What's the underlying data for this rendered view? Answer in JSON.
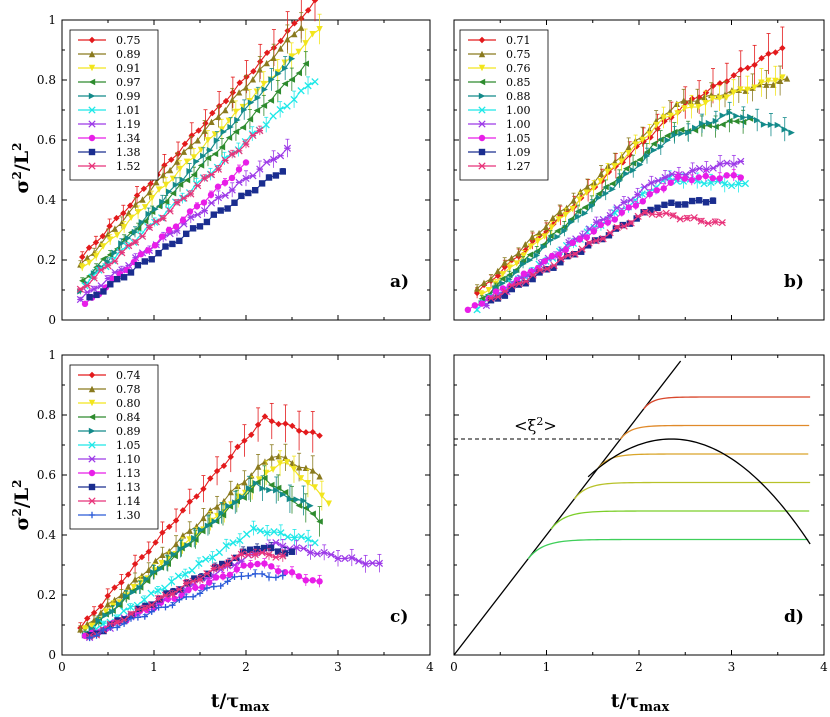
{
  "figure": {
    "ylabel": "σ²/L²",
    "xlabel": "t/τmax",
    "xlabel_main": "t/τ",
    "xlabel_sub": "max",
    "ylabel_main": "σ",
    "ylabel_sup": "2",
    "ylabel_rest": "/L",
    "ylabel_sup2": "2"
  },
  "chart_data": [
    {
      "type": "line",
      "panel": "a)",
      "xlim": [
        0,
        4
      ],
      "ylim": [
        0,
        1
      ],
      "xticks": [
        0,
        1,
        2,
        3,
        4
      ],
      "yticks": [
        0,
        0.2,
        0.4,
        0.6,
        0.8,
        1
      ],
      "ytick_labels": [
        "0",
        "0.2",
        "0.4",
        "0.6",
        "0.8",
        "1"
      ],
      "xtick_labels": [],
      "series": [
        {
          "name": "0.75",
          "color": "#e31a1c",
          "marker": "diamond",
          "x": [
            0.22,
            2.75
          ],
          "y": [
            0.21,
            1.06
          ],
          "err": 0.07
        },
        {
          "name": "0.89",
          "color": "#8a7a1e",
          "marker": "triangle",
          "x": [
            0.2,
            2.6
          ],
          "y": [
            0.18,
            0.98
          ],
          "err": 0.05
        },
        {
          "name": "0.91",
          "color": "#f2e51d",
          "marker": "triangle-down",
          "x": [
            0.22,
            2.8
          ],
          "y": [
            0.17,
            0.97
          ],
          "err": 0.05
        },
        {
          "name": "0.97",
          "color": "#2e8b2e",
          "marker": "triangle-left",
          "x": [
            0.22,
            2.65
          ],
          "y": [
            0.13,
            0.85
          ],
          "err": 0.04
        },
        {
          "name": "0.99",
          "color": "#138a8a",
          "marker": "triangle-right",
          "x": [
            0.2,
            2.5
          ],
          "y": [
            0.1,
            0.87
          ],
          "err": 0.04
        },
        {
          "name": "1.01",
          "color": "#1ee8e8",
          "marker": "x",
          "x": [
            0.25,
            2.75
          ],
          "y": [
            0.12,
            0.8
          ],
          "err": 0.03
        },
        {
          "name": "1.19",
          "color": "#9d3ae8",
          "marker": "asterisk",
          "x": [
            0.2,
            2.45
          ],
          "y": [
            0.07,
            0.57
          ],
          "err": 0.03
        },
        {
          "name": "1.34",
          "color": "#e81ee8",
          "marker": "circle",
          "x": [
            0.25,
            2.0
          ],
          "y": [
            0.05,
            0.52
          ],
          "err": 0.015
        },
        {
          "name": "1.38",
          "color": "#1a2d8f",
          "marker": "square",
          "x": [
            0.3,
            2.4
          ],
          "y": [
            0.07,
            0.5
          ],
          "err": 0.01
        },
        {
          "name": "1.52",
          "color": "#e8337a",
          "marker": "asterisk",
          "x": [
            0.2,
            2.15
          ],
          "y": [
            0.1,
            0.63
          ],
          "err": 0.015
        }
      ]
    },
    {
      "type": "line",
      "panel": "b)",
      "xlim": [
        0,
        4
      ],
      "ylim": [
        0,
        1
      ],
      "xticks": [
        0,
        1,
        2,
        3,
        4
      ],
      "yticks": [
        0,
        0.2,
        0.4,
        0.6,
        0.8,
        1
      ],
      "ytick_labels": [],
      "xtick_labels": [],
      "series": [
        {
          "name": "0.71",
          "color": "#e31a1c",
          "marker": "diamond",
          "x": [
            0.25,
            2.5,
            3.55
          ],
          "y": [
            0.09,
            0.72,
            0.91
          ],
          "err": 0.07
        },
        {
          "name": "0.75",
          "color": "#8a7a1e",
          "marker": "triangle",
          "x": [
            0.25,
            2.4,
            3.6
          ],
          "y": [
            0.1,
            0.72,
            0.8
          ],
          "err": 0.05
        },
        {
          "name": "0.76",
          "color": "#f2e51d",
          "marker": "triangle-down",
          "x": [
            0.3,
            2.3,
            3.55
          ],
          "y": [
            0.08,
            0.68,
            0.81
          ],
          "err": 0.05
        },
        {
          "name": "0.85",
          "color": "#2e8b2e",
          "marker": "triangle-left",
          "x": [
            0.3,
            2.3,
            3.2
          ],
          "y": [
            0.07,
            0.62,
            0.67
          ],
          "err": 0.04
        },
        {
          "name": "0.88",
          "color": "#138a8a",
          "marker": "triangle-right",
          "x": [
            0.3,
            2.3,
            3.0,
            3.65
          ],
          "y": [
            0.06,
            0.6,
            0.69,
            0.63
          ],
          "err": 0.04
        },
        {
          "name": "1.00",
          "color": "#1ee8e8",
          "marker": "x",
          "x": [
            0.25,
            2.3,
            3.15
          ],
          "y": [
            0.04,
            0.47,
            0.45
          ],
          "err": 0.03
        },
        {
          "name": "1.00",
          "color": "#9d3ae8",
          "marker": "asterisk",
          "x": [
            0.35,
            2.2,
            3.1
          ],
          "y": [
            0.05,
            0.47,
            0.53
          ],
          "err": 0.03
        },
        {
          "name": "1.05",
          "color": "#e81ee8",
          "marker": "circle",
          "x": [
            0.15,
            2.4,
            3.1
          ],
          "y": [
            0.03,
            0.47,
            0.48
          ],
          "err": 0.02
        },
        {
          "name": "1.09",
          "color": "#1a2d8f",
          "marker": "square",
          "x": [
            0.4,
            2.2,
            2.8
          ],
          "y": [
            0.06,
            0.38,
            0.4
          ],
          "err": 0.01
        },
        {
          "name": "1.27",
          "color": "#e8337a",
          "marker": "asterisk",
          "x": [
            0.4,
            2.1,
            2.9
          ],
          "y": [
            0.07,
            0.36,
            0.32
          ],
          "err": 0.01
        }
      ]
    },
    {
      "type": "line",
      "panel": "c)",
      "xlim": [
        0,
        4
      ],
      "ylim": [
        0,
        1
      ],
      "xticks": [
        0,
        1,
        2,
        3,
        4
      ],
      "yticks": [
        0,
        0.2,
        0.4,
        0.6,
        0.8,
        1
      ],
      "ytick_labels": [
        "0",
        "0.2",
        "0.4",
        "0.6",
        "0.8",
        "1"
      ],
      "xtick_labels": [
        "0",
        "1",
        "2",
        "3",
        "4"
      ],
      "series": [
        {
          "name": "0.74",
          "color": "#e31a1c",
          "marker": "diamond",
          "x": [
            0.2,
            2.2,
            2.8
          ],
          "y": [
            0.09,
            0.79,
            0.73
          ],
          "err": 0.07
        },
        {
          "name": "0.78",
          "color": "#8a7a1e",
          "marker": "triangle",
          "x": [
            0.2,
            2.3,
            2.8
          ],
          "y": [
            0.08,
            0.67,
            0.6
          ],
          "err": 0.05
        },
        {
          "name": "0.80",
          "color": "#f2e51d",
          "marker": "triangle-down",
          "x": [
            0.25,
            2.4,
            2.9
          ],
          "y": [
            0.08,
            0.65,
            0.51
          ],
          "err": 0.05
        },
        {
          "name": "0.84",
          "color": "#2e8b2e",
          "marker": "triangle-left",
          "x": [
            0.25,
            2.2,
            2.8
          ],
          "y": [
            0.07,
            0.59,
            0.45
          ],
          "err": 0.05
        },
        {
          "name": "0.89",
          "color": "#138a8a",
          "marker": "triangle-right",
          "x": [
            0.25,
            2.1,
            2.7
          ],
          "y": [
            0.07,
            0.57,
            0.5
          ],
          "err": 0.05
        },
        {
          "name": "1.05",
          "color": "#1ee8e8",
          "marker": "x",
          "x": [
            0.3,
            2.1,
            2.75
          ],
          "y": [
            0.07,
            0.42,
            0.38
          ],
          "err": 0.03
        },
        {
          "name": "1.10",
          "color": "#9d3ae8",
          "marker": "asterisk",
          "x": [
            0.3,
            2.3,
            3.45
          ],
          "y": [
            0.06,
            0.37,
            0.3
          ],
          "err": 0.03
        },
        {
          "name": "1.13",
          "color": "#e81ee8",
          "marker": "circle",
          "x": [
            0.25,
            2.1,
            2.8
          ],
          "y": [
            0.06,
            0.31,
            0.24
          ],
          "err": 0.02
        },
        {
          "name": "1.13",
          "color": "#1a2d8f",
          "marker": "square",
          "x": [
            0.3,
            2.1,
            2.5
          ],
          "y": [
            0.06,
            0.36,
            0.34
          ],
          "err": 0.02
        },
        {
          "name": "1.14",
          "color": "#e8337a",
          "marker": "asterisk",
          "x": [
            0.3,
            2.0,
            2.4
          ],
          "y": [
            0.06,
            0.34,
            0.33
          ],
          "err": 0.02
        },
        {
          "name": "1.30",
          "color": "#2a5ad8",
          "marker": "plus",
          "x": [
            0.3,
            2.0,
            2.4
          ],
          "y": [
            0.06,
            0.27,
            0.26
          ],
          "err": 0.015
        }
      ]
    },
    {
      "type": "line",
      "panel": "d)",
      "xlim": [
        0,
        4
      ],
      "ylim": [
        0,
        1
      ],
      "xticks": [
        0,
        1,
        2,
        3,
        4
      ],
      "yticks": [
        0,
        0.2,
        0.4,
        0.6,
        0.8,
        1
      ],
      "ytick_labels": [],
      "xtick_labels": [
        "0",
        "1",
        "2",
        "3",
        "4"
      ],
      "annotation": "<ξ²>",
      "annotation_main": "<ξ",
      "annotation_sup": "2",
      "annotation_end": ">",
      "reference_level": 0.72,
      "slope": 0.4,
      "saturation_curves": [
        {
          "saturation": 0.86,
          "color": "#d9472b",
          "x_start": 2.05
        },
        {
          "saturation": 0.765,
          "color": "#e08a2a",
          "x_start": 1.8
        },
        {
          "saturation": 0.67,
          "color": "#d9a52a",
          "x_start": 1.55
        },
        {
          "saturation": 0.575,
          "color": "#b8c22a",
          "x_start": 1.3
        },
        {
          "saturation": 0.48,
          "color": "#7ccf2a",
          "x_start": 1.05
        },
        {
          "saturation": 0.385,
          "color": "#3fcf5a",
          "x_start": 0.8
        }
      ],
      "peaked_curve": {
        "peak_x": 2.35,
        "peak_y": 0.72,
        "x_start": 1.45,
        "x_end": 3.85,
        "y_end": 0.37,
        "color": "#000000"
      }
    }
  ]
}
